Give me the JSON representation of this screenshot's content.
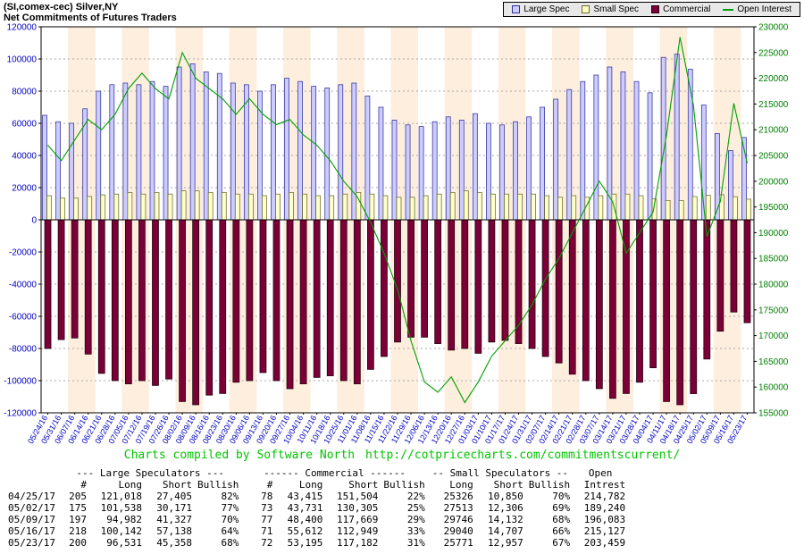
{
  "title": {
    "line1": "(SI,comex-cec) Silver,NY",
    "line2": "Net Commitments of Futures Traders"
  },
  "legend": {
    "items": [
      {
        "label": "Large Spec",
        "type": "box",
        "color": "#ccccff",
        "border": "#30309a"
      },
      {
        "label": "Small Spec",
        "type": "box",
        "color": "#ffffcc",
        "border": "#6a6a2a"
      },
      {
        "label": "Commercial",
        "type": "box",
        "color": "#7a0036",
        "border": "#21000e"
      },
      {
        "label": "Open Interest",
        "type": "line",
        "color": "#00a000"
      }
    ]
  },
  "chart_data": {
    "type": "bar",
    "title": "Net Commitments of Futures Traders",
    "x": [
      "05/24/16",
      "05/31/16",
      "06/07/16",
      "06/14/16",
      "06/21/16",
      "06/28/16",
      "07/05/16",
      "07/12/16",
      "07/19/16",
      "07/26/16",
      "08/02/16",
      "08/09/16",
      "08/16/16",
      "08/23/16",
      "08/30/16",
      "09/06/16",
      "09/13/16",
      "09/20/16",
      "09/27/16",
      "10/04/16",
      "10/11/16",
      "10/18/16",
      "10/25/16",
      "11/01/16",
      "11/08/16",
      "11/15/16",
      "11/22/16",
      "11/29/16",
      "12/06/16",
      "12/13/16",
      "12/20/16",
      "12/27/16",
      "01/03/17",
      "01/10/17",
      "01/17/17",
      "01/24/17",
      "01/31/17",
      "02/07/17",
      "02/14/17",
      "02/21/17",
      "02/28/17",
      "03/07/17",
      "03/14/17",
      "03/21/17",
      "03/28/17",
      "04/04/17",
      "04/11/17",
      "04/18/17",
      "04/25/17",
      "05/02/17",
      "05/09/17",
      "05/16/17",
      "05/23/17"
    ],
    "series": [
      {
        "name": "Large Spec",
        "type": "bar",
        "axis": "left",
        "fill": "#ccccff",
        "stroke": "#30309a",
        "values": [
          65000,
          61000,
          60000,
          69000,
          80000,
          84000,
          85000,
          84000,
          86000,
          83000,
          95000,
          97000,
          92000,
          91000,
          85000,
          84000,
          80000,
          84000,
          88000,
          86000,
          83000,
          82000,
          84000,
          85000,
          77000,
          70000,
          62000,
          59000,
          58000,
          61000,
          64000,
          62000,
          66000,
          60000,
          59000,
          61000,
          64000,
          70000,
          75000,
          81000,
          86000,
          90000,
          95000,
          92000,
          86000,
          79000,
          101000,
          103000,
          93613,
          71367,
          53655,
          43004,
          51173
        ]
      },
      {
        "name": "Small Spec",
        "type": "bar",
        "axis": "left",
        "fill": "#ffffcc",
        "stroke": "#6a6a2a",
        "values": [
          15000,
          13500,
          13500,
          14500,
          15500,
          16000,
          17000,
          16000,
          17000,
          16000,
          18000,
          18000,
          17000,
          17000,
          16000,
          16000,
          15000,
          16000,
          17000,
          16000,
          15000,
          15000,
          16000,
          17000,
          16000,
          15000,
          14000,
          14000,
          15000,
          16000,
          17000,
          18000,
          17000,
          16000,
          16000,
          16000,
          16000,
          15000,
          14000,
          15000,
          14000,
          15000,
          16000,
          16000,
          15000,
          13000,
          12000,
          12000,
          14476,
          15207,
          15614,
          14333,
          12814
        ]
      },
      {
        "name": "Commercial",
        "type": "bar",
        "axis": "left",
        "fill": "#7a0036",
        "stroke": "#21000e",
        "values": [
          -80000,
          -74500,
          -73500,
          -83500,
          -95500,
          -100000,
          -102000,
          -100000,
          -103000,
          -99000,
          -113000,
          -115000,
          -109000,
          -108000,
          -101000,
          -100000,
          -95000,
          -100000,
          -105000,
          -102000,
          -98000,
          -97000,
          -100000,
          -102000,
          -93000,
          -85000,
          -76000,
          -73000,
          -73000,
          -77000,
          -81000,
          -80000,
          -83000,
          -76000,
          -75000,
          -77000,
          -80000,
          -85000,
          -89000,
          -96000,
          -100000,
          -105000,
          -111000,
          -108000,
          -101000,
          -92000,
          -113000,
          -115000,
          -108089,
          -86574,
          -69269,
          -57337,
          -63987
        ]
      },
      {
        "name": "Open Interest",
        "type": "line",
        "axis": "right",
        "stroke": "#00a000",
        "values": [
          207000,
          204000,
          208000,
          212000,
          210000,
          213000,
          218000,
          221000,
          218000,
          216000,
          225000,
          220000,
          218000,
          216000,
          213000,
          216000,
          213000,
          211000,
          212000,
          209000,
          207000,
          204000,
          200000,
          197000,
          192000,
          186000,
          179000,
          169000,
          161000,
          159000,
          162000,
          157000,
          161000,
          166000,
          169000,
          172000,
          176000,
          181000,
          185000,
          190000,
          195000,
          200000,
          196000,
          186000,
          190000,
          194000,
          209000,
          228000,
          214782,
          189240,
          196083,
          215127,
          203459
        ]
      }
    ],
    "left_axis": {
      "min": -120000,
      "max": 120000,
      "step": 20000,
      "label_color": "#0000c0"
    },
    "right_axis": {
      "min": 155000,
      "max": 230000,
      "step": 5000,
      "label_color": "#008000"
    },
    "x_label_color": "#0000c0",
    "stripe_color": "#fdeedd",
    "grid_color": "#aaaaaa",
    "grid": true,
    "legend_position": "top-right"
  },
  "footer": {
    "credit": "Charts compiled by Software North",
    "url": "http://cotpricecharts.com/commitmentscurrent/"
  },
  "table": {
    "groups": [
      {
        "label": "--- Large Speculators ---",
        "span": 4
      },
      {
        "label": "------ Commercial ------",
        "span": 4
      },
      {
        "label": "-- Small Speculators --",
        "span": 3
      },
      {
        "label": "Open",
        "span": 1
      }
    ],
    "columns": [
      "",
      "#",
      "Long",
      "Short",
      "Bullish",
      "#",
      "Long",
      "Short",
      "Bullish",
      "Long",
      "Short",
      "Bullish",
      "Intrest"
    ],
    "rows": [
      [
        "04/25/17",
        "205",
        "121,018",
        "27,405",
        "82%",
        "78",
        "43,415",
        "151,504",
        "22%",
        "25326",
        "10,850",
        "70%",
        "214,782"
      ],
      [
        "05/02/17",
        "175",
        "101,538",
        "30,171",
        "77%",
        "73",
        "43,731",
        "130,305",
        "25%",
        "27513",
        "12,306",
        "69%",
        "189,240"
      ],
      [
        "05/09/17",
        "197",
        "94,982",
        "41,327",
        "70%",
        "77",
        "48,400",
        "117,669",
        "29%",
        "29746",
        "14,132",
        "68%",
        "196,083"
      ],
      [
        "05/16/17",
        "218",
        "100,142",
        "57,138",
        "64%",
        "71",
        "55,612",
        "112,949",
        "33%",
        "29040",
        "14,707",
        "66%",
        "215,127"
      ],
      [
        "05/23/17",
        "200",
        "96,531",
        "45,358",
        "68%",
        "72",
        "53,195",
        "117,182",
        "31%",
        "25771",
        "12,957",
        "67%",
        "203,459"
      ]
    ]
  }
}
